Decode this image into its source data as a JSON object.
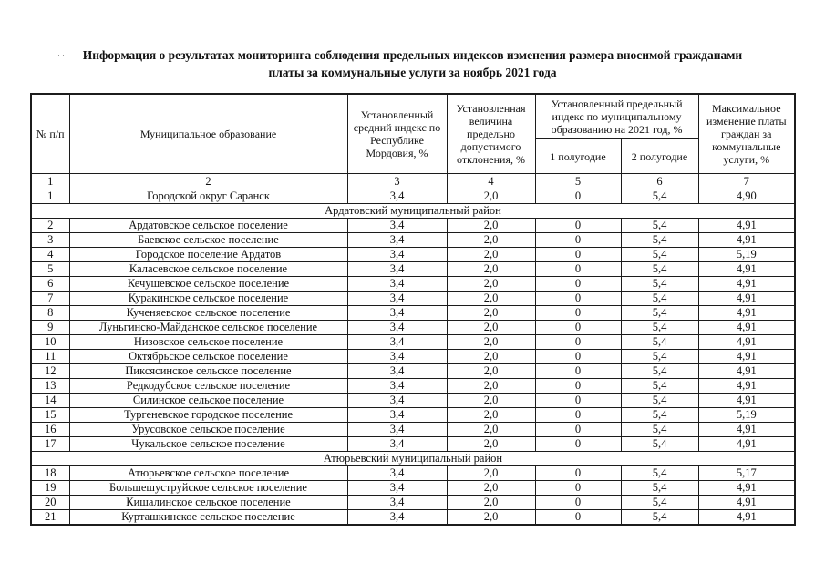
{
  "page": {
    "scan_mark": "··",
    "title_line1": "Информация о результатах мониторинга соблюдения предельных индексов изменения размера вносимой гражданами",
    "title_line2": "платы за коммунальные услуги за ноябрь 2021 года"
  },
  "table": {
    "headers": {
      "col_num": "№ п/п",
      "col_municipality": "Муниципальное образование",
      "col_avg_index": "Установленный средний индекс по Республике Мордовия, %",
      "col_deviation": "Установленная величина предельно допустимого отклонения, %",
      "col_limit_group": "Установленный предельный индекс по муниципальному образованию на 2021 год, %",
      "col_half1": "1 полугодие",
      "col_half2": "2 полугодие",
      "col_max_change": "Максимальное изменение платы граждан за коммунальные услуги, %"
    },
    "column_numbers": [
      "1",
      "2",
      "3",
      "4",
      "5",
      "6",
      "7"
    ],
    "rows": [
      {
        "type": "data",
        "num": "1",
        "name": "Городской округ Саранск",
        "avg": "3,4",
        "dev": "2,0",
        "h1": "0",
        "h2": "5,4",
        "max": "4,90"
      },
      {
        "type": "section",
        "name": "Ардатовский муниципальный район"
      },
      {
        "type": "data",
        "num": "2",
        "name": "Ардатовское сельское поселение",
        "avg": "3,4",
        "dev": "2,0",
        "h1": "0",
        "h2": "5,4",
        "max": "4,91"
      },
      {
        "type": "data",
        "num": "3",
        "name": "Баевское сельское поселение",
        "avg": "3,4",
        "dev": "2,0",
        "h1": "0",
        "h2": "5,4",
        "max": "4,91"
      },
      {
        "type": "data",
        "num": "4",
        "name": "Городское поселение Ардатов",
        "avg": "3,4",
        "dev": "2,0",
        "h1": "0",
        "h2": "5,4",
        "max": "5,19"
      },
      {
        "type": "data",
        "num": "5",
        "name": "Каласевское сельское поселение",
        "avg": "3,4",
        "dev": "2,0",
        "h1": "0",
        "h2": "5,4",
        "max": "4,91"
      },
      {
        "type": "data",
        "num": "6",
        "name": "Кечушевское сельское поселение",
        "avg": "3,4",
        "dev": "2,0",
        "h1": "0",
        "h2": "5,4",
        "max": "4,91"
      },
      {
        "type": "data",
        "num": "7",
        "name": "Куракинское сельское поселение",
        "avg": "3,4",
        "dev": "2,0",
        "h1": "0",
        "h2": "5,4",
        "max": "4,91"
      },
      {
        "type": "data",
        "num": "8",
        "name": "Кученяевское сельское поселение",
        "avg": "3,4",
        "dev": "2,0",
        "h1": "0",
        "h2": "5,4",
        "max": "4,91"
      },
      {
        "type": "data",
        "num": "9",
        "name": "Луньгинско-Майданское сельское поселение",
        "avg": "3,4",
        "dev": "2,0",
        "h1": "0",
        "h2": "5,4",
        "max": "4,91"
      },
      {
        "type": "data",
        "num": "10",
        "name": "Низовское сельское поселение",
        "avg": "3,4",
        "dev": "2,0",
        "h1": "0",
        "h2": "5,4",
        "max": "4,91"
      },
      {
        "type": "data",
        "num": "11",
        "name": "Октябрьское сельское поселение",
        "avg": "3,4",
        "dev": "2,0",
        "h1": "0",
        "h2": "5,4",
        "max": "4,91"
      },
      {
        "type": "data",
        "num": "12",
        "name": "Пиксясинское сельское поселение",
        "avg": "3,4",
        "dev": "2,0",
        "h1": "0",
        "h2": "5,4",
        "max": "4,91"
      },
      {
        "type": "data",
        "num": "13",
        "name": "Редкодубское сельское поселение",
        "avg": "3,4",
        "dev": "2,0",
        "h1": "0",
        "h2": "5,4",
        "max": "4,91"
      },
      {
        "type": "data",
        "num": "14",
        "name": "Силинское сельское поселение",
        "avg": "3,4",
        "dev": "2,0",
        "h1": "0",
        "h2": "5,4",
        "max": "4,91"
      },
      {
        "type": "data",
        "num": "15",
        "name": "Тургеневское городское поселение",
        "avg": "3,4",
        "dev": "2,0",
        "h1": "0",
        "h2": "5,4",
        "max": "5,19"
      },
      {
        "type": "data",
        "num": "16",
        "name": "Урусовское сельское поселение",
        "avg": "3,4",
        "dev": "2,0",
        "h1": "0",
        "h2": "5,4",
        "max": "4,91"
      },
      {
        "type": "data",
        "num": "17",
        "name": "Чукальское сельское поселение",
        "avg": "3,4",
        "dev": "2,0",
        "h1": "0",
        "h2": "5,4",
        "max": "4,91"
      },
      {
        "type": "section",
        "name": "Атюрьевский муниципальный район"
      },
      {
        "type": "data",
        "num": "18",
        "name": "Атюрьевское сельское поселение",
        "avg": "3,4",
        "dev": "2,0",
        "h1": "0",
        "h2": "5,4",
        "max": "5,17"
      },
      {
        "type": "data",
        "num": "19",
        "name": "Большешуструйское сельское поселение",
        "avg": "3,4",
        "dev": "2,0",
        "h1": "0",
        "h2": "5,4",
        "max": "4,91"
      },
      {
        "type": "data",
        "num": "20",
        "name": "Кишалинское сельское поселение",
        "avg": "3,4",
        "dev": "2,0",
        "h1": "0",
        "h2": "5,4",
        "max": "4,91"
      },
      {
        "type": "data",
        "num": "21",
        "name": "Курташкинское сельское поселение",
        "avg": "3,4",
        "dev": "2,0",
        "h1": "0",
        "h2": "5,4",
        "max": "4,91"
      }
    ]
  }
}
